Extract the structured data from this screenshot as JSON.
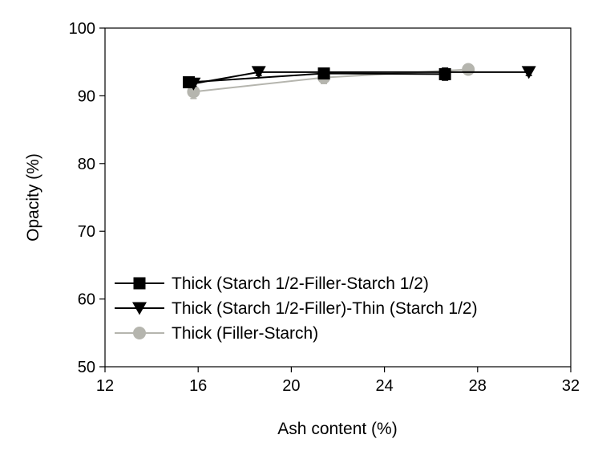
{
  "chart_data": {
    "type": "line",
    "xlabel": "Ash content (%)",
    "ylabel": "Opacity (%)",
    "xlim": [
      12,
      32
    ],
    "ylim": [
      50,
      100
    ],
    "xticks": [
      12,
      16,
      20,
      24,
      28,
      32
    ],
    "yticks": [
      50,
      60,
      70,
      80,
      90,
      100
    ],
    "grid": false,
    "legend": "bottom-left",
    "series": [
      {
        "name": "Thick (Starch 1/2-Filler-Starch 1/2)",
        "marker": "square",
        "color": "#000000",
        "x": [
          15.6,
          21.4,
          26.6
        ],
        "y": [
          92.0,
          93.3,
          93.2
        ],
        "error": [
          0.5,
          0.4,
          0.9
        ]
      },
      {
        "name": "Thick (Starch 1/2-Filler)-Thin (Starch 1/2)",
        "marker": "triangle-down",
        "color": "#000000",
        "x": [
          15.8,
          18.6,
          30.2
        ],
        "y": [
          91.8,
          93.5,
          93.5
        ],
        "error": [
          0.4,
          0.5,
          0.5
        ]
      },
      {
        "name": "Thick (Filler-Starch)",
        "marker": "circle",
        "color": "#b5b5ae",
        "x": [
          15.8,
          21.4,
          27.6
        ],
        "y": [
          90.6,
          92.7,
          93.9
        ],
        "error": [
          1.0,
          0.9,
          0.5
        ]
      }
    ]
  }
}
